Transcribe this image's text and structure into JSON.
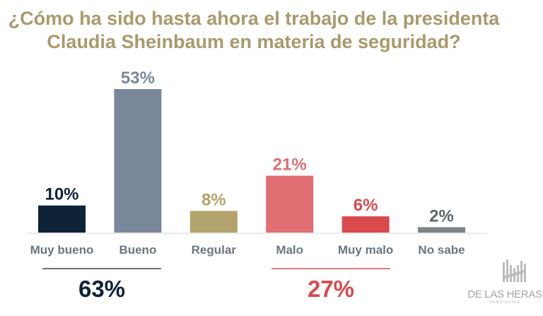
{
  "title": {
    "line1": "¿Cómo ha sido hasta ahora el trabajo de la presidenta",
    "line2": "Claudia Sheinbaum en materia de seguridad?"
  },
  "chart_data": {
    "type": "bar",
    "title": "¿Cómo ha sido hasta ahora el trabajo de la presidenta Claudia Sheinbaum en materia de seguridad?",
    "xlabel": "",
    "ylabel": "",
    "ylim": [
      0,
      55
    ],
    "grid": false,
    "categories": [
      "Muy bueno",
      "Bueno",
      "Regular",
      "Malo",
      "Muy malo",
      "No sabe"
    ],
    "values": [
      10,
      53,
      8,
      21,
      6,
      2
    ],
    "data_labels": [
      "10%",
      "53%",
      "8%",
      "21%",
      "6%",
      "2%"
    ],
    "colors": [
      "#0e2338",
      "#7a889b",
      "#b3a36c",
      "#e06e72",
      "#d94a4d",
      "#7f8489"
    ],
    "label_colors": [
      "#0e2338",
      "#7a889b",
      "#b3a36c",
      "#e06e72",
      "#d94a4d",
      "#5f6670"
    ],
    "groups": [
      {
        "name": "positive",
        "members": [
          "Muy bueno",
          "Bueno"
        ],
        "total": "63%",
        "color": "#0e2338",
        "line_color": "#6f737a"
      },
      {
        "name": "negative",
        "members": [
          "Malo",
          "Muy malo"
        ],
        "total": "27%",
        "color": "#d94a4d",
        "line_color": "#e07a7c"
      }
    ]
  },
  "logo": {
    "name": "DE LAS HERAS",
    "subtitle": "DEMOTECNIA"
  }
}
